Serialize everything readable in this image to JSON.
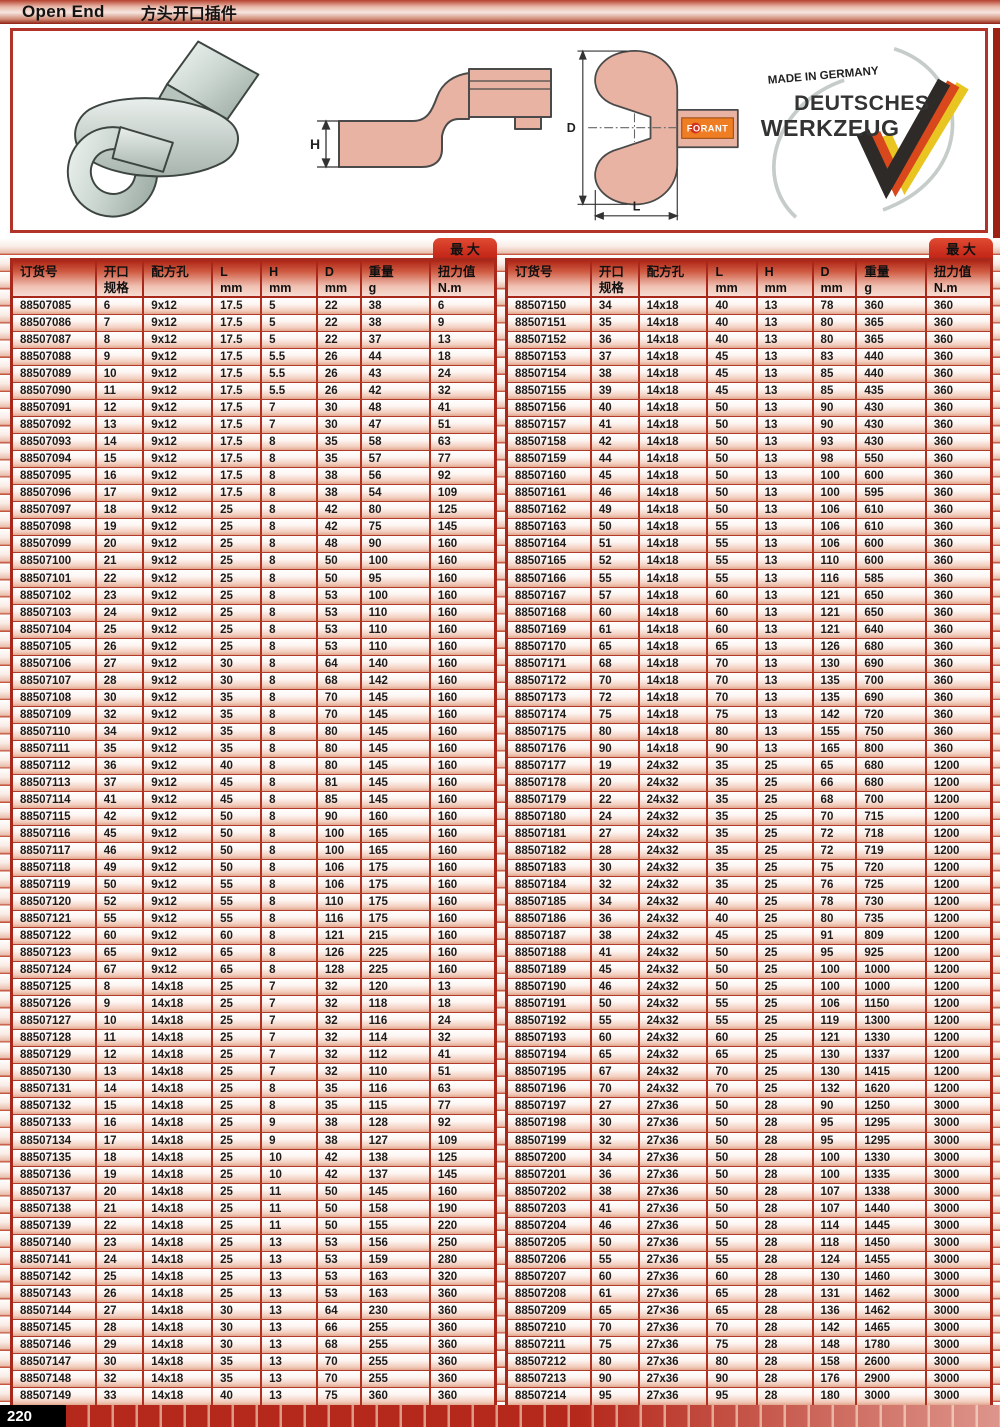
{
  "page": {
    "title_en": "Open End",
    "title_zh": "方头开口插件",
    "page_number": "220"
  },
  "figures": {
    "side_h_label": "H",
    "front_d_label": "D",
    "front_l_label": "L",
    "brand": "FORANT",
    "logo_line1": "MADE IN GERMANY",
    "logo_line2": "DEUTSCHES",
    "logo_line3": "WERKZEUG"
  },
  "table": {
    "max_tab": "最 大",
    "headers": [
      {
        "l1": "订货号",
        "l2": ""
      },
      {
        "l1": "开口",
        "l2": "规格"
      },
      {
        "l1": "配方孔",
        "l2": ""
      },
      {
        "l1": "L",
        "l2": "mm"
      },
      {
        "l1": "H",
        "l2": "mm"
      },
      {
        "l1": "D",
        "l2": "mm"
      },
      {
        "l1": "重量",
        "l2": "g"
      },
      {
        "l1": "扭力值",
        "l2": "N.m"
      }
    ],
    "left_rows": [
      [
        "88507085",
        "6",
        "9x12",
        "17.5",
        "5",
        "22",
        "38",
        "6"
      ],
      [
        "88507086",
        "7",
        "9x12",
        "17.5",
        "5",
        "22",
        "38",
        "9"
      ],
      [
        "88507087",
        "8",
        "9x12",
        "17.5",
        "5",
        "22",
        "37",
        "13"
      ],
      [
        "88507088",
        "9",
        "9x12",
        "17.5",
        "5.5",
        "26",
        "44",
        "18"
      ],
      [
        "88507089",
        "10",
        "9x12",
        "17.5",
        "5.5",
        "26",
        "43",
        "24"
      ],
      [
        "88507090",
        "11",
        "9x12",
        "17.5",
        "5.5",
        "26",
        "42",
        "32"
      ],
      [
        "88507091",
        "12",
        "9x12",
        "17.5",
        "7",
        "30",
        "48",
        "41"
      ],
      [
        "88507092",
        "13",
        "9x12",
        "17.5",
        "7",
        "30",
        "47",
        "51"
      ],
      [
        "88507093",
        "14",
        "9x12",
        "17.5",
        "8",
        "35",
        "58",
        "63"
      ],
      [
        "88507094",
        "15",
        "9x12",
        "17.5",
        "8",
        "35",
        "57",
        "77"
      ],
      [
        "88507095",
        "16",
        "9x12",
        "17.5",
        "8",
        "38",
        "56",
        "92"
      ],
      [
        "88507096",
        "17",
        "9x12",
        "17.5",
        "8",
        "38",
        "54",
        "109"
      ],
      [
        "88507097",
        "18",
        "9x12",
        "25",
        "8",
        "42",
        "80",
        "125"
      ],
      [
        "88507098",
        "19",
        "9x12",
        "25",
        "8",
        "42",
        "75",
        "145"
      ],
      [
        "88507099",
        "20",
        "9x12",
        "25",
        "8",
        "48",
        "90",
        "160"
      ],
      [
        "88507100",
        "21",
        "9x12",
        "25",
        "8",
        "50",
        "100",
        "160"
      ],
      [
        "88507101",
        "22",
        "9x12",
        "25",
        "8",
        "50",
        "95",
        "160"
      ],
      [
        "88507102",
        "23",
        "9x12",
        "25",
        "8",
        "53",
        "100",
        "160"
      ],
      [
        "88507103",
        "24",
        "9x12",
        "25",
        "8",
        "53",
        "110",
        "160"
      ],
      [
        "88507104",
        "25",
        "9x12",
        "25",
        "8",
        "53",
        "110",
        "160"
      ],
      [
        "88507105",
        "26",
        "9x12",
        "25",
        "8",
        "53",
        "110",
        "160"
      ],
      [
        "88507106",
        "27",
        "9x12",
        "30",
        "8",
        "64",
        "140",
        "160"
      ],
      [
        "88507107",
        "28",
        "9x12",
        "30",
        "8",
        "68",
        "142",
        "160"
      ],
      [
        "88507108",
        "30",
        "9x12",
        "35",
        "8",
        "70",
        "145",
        "160"
      ],
      [
        "88507109",
        "32",
        "9x12",
        "35",
        "8",
        "70",
        "145",
        "160"
      ],
      [
        "88507110",
        "34",
        "9x12",
        "35",
        "8",
        "80",
        "145",
        "160"
      ],
      [
        "88507111",
        "35",
        "9x12",
        "35",
        "8",
        "80",
        "145",
        "160"
      ],
      [
        "88507112",
        "36",
        "9x12",
        "40",
        "8",
        "80",
        "145",
        "160"
      ],
      [
        "88507113",
        "37",
        "9x12",
        "45",
        "8",
        "81",
        "145",
        "160"
      ],
      [
        "88507114",
        "41",
        "9x12",
        "45",
        "8",
        "85",
        "145",
        "160"
      ],
      [
        "88507115",
        "42",
        "9x12",
        "50",
        "8",
        "90",
        "160",
        "160"
      ],
      [
        "88507116",
        "45",
        "9x12",
        "50",
        "8",
        "100",
        "165",
        "160"
      ],
      [
        "88507117",
        "46",
        "9x12",
        "50",
        "8",
        "100",
        "165",
        "160"
      ],
      [
        "88507118",
        "49",
        "9x12",
        "50",
        "8",
        "106",
        "175",
        "160"
      ],
      [
        "88507119",
        "50",
        "9x12",
        "55",
        "8",
        "106",
        "175",
        "160"
      ],
      [
        "88507120",
        "52",
        "9x12",
        "55",
        "8",
        "110",
        "175",
        "160"
      ],
      [
        "88507121",
        "55",
        "9x12",
        "55",
        "8",
        "116",
        "175",
        "160"
      ],
      [
        "88507122",
        "60",
        "9x12",
        "60",
        "8",
        "121",
        "215",
        "160"
      ],
      [
        "88507123",
        "65",
        "9x12",
        "65",
        "8",
        "126",
        "225",
        "160"
      ],
      [
        "88507124",
        "67",
        "9x12",
        "65",
        "8",
        "128",
        "225",
        "160"
      ],
      [
        "88507125",
        "8",
        "14x18",
        "25",
        "7",
        "32",
        "120",
        "13"
      ],
      [
        "88507126",
        "9",
        "14x18",
        "25",
        "7",
        "32",
        "118",
        "18"
      ],
      [
        "88507127",
        "10",
        "14x18",
        "25",
        "7",
        "32",
        "116",
        "24"
      ],
      [
        "88507128",
        "11",
        "14x18",
        "25",
        "7",
        "32",
        "114",
        "32"
      ],
      [
        "88507129",
        "12",
        "14x18",
        "25",
        "7",
        "32",
        "112",
        "41"
      ],
      [
        "88507130",
        "13",
        "14x18",
        "25",
        "7",
        "32",
        "110",
        "51"
      ],
      [
        "88507131",
        "14",
        "14x18",
        "25",
        "8",
        "35",
        "116",
        "63"
      ],
      [
        "88507132",
        "15",
        "14x18",
        "25",
        "8",
        "35",
        "115",
        "77"
      ],
      [
        "88507133",
        "16",
        "14x18",
        "25",
        "9",
        "38",
        "128",
        "92"
      ],
      [
        "88507134",
        "17",
        "14x18",
        "25",
        "9",
        "38",
        "127",
        "109"
      ],
      [
        "88507135",
        "18",
        "14x18",
        "25",
        "10",
        "42",
        "138",
        "125"
      ],
      [
        "88507136",
        "19",
        "14x18",
        "25",
        "10",
        "42",
        "137",
        "145"
      ],
      [
        "88507137",
        "20",
        "14x18",
        "25",
        "11",
        "50",
        "145",
        "160"
      ],
      [
        "88507138",
        "21",
        "14x18",
        "25",
        "11",
        "50",
        "158",
        "190"
      ],
      [
        "88507139",
        "22",
        "14x18",
        "25",
        "11",
        "50",
        "155",
        "220"
      ],
      [
        "88507140",
        "23",
        "14x18",
        "25",
        "13",
        "53",
        "156",
        "250"
      ],
      [
        "88507141",
        "24",
        "14x18",
        "25",
        "13",
        "53",
        "159",
        "280"
      ],
      [
        "88507142",
        "25",
        "14x18",
        "25",
        "13",
        "53",
        "163",
        "320"
      ],
      [
        "88507143",
        "26",
        "14x18",
        "25",
        "13",
        "53",
        "163",
        "360"
      ],
      [
        "88507144",
        "27",
        "14x18",
        "30",
        "13",
        "64",
        "230",
        "360"
      ],
      [
        "88507145",
        "28",
        "14x18",
        "30",
        "13",
        "66",
        "255",
        "360"
      ],
      [
        "88507146",
        "29",
        "14x18",
        "30",
        "13",
        "68",
        "255",
        "360"
      ],
      [
        "88507147",
        "30",
        "14x18",
        "35",
        "13",
        "70",
        "255",
        "360"
      ],
      [
        "88507148",
        "32",
        "14x18",
        "35",
        "13",
        "70",
        "255",
        "360"
      ],
      [
        "88507149",
        "33",
        "14x18",
        "40",
        "13",
        "75",
        "360",
        "360"
      ]
    ],
    "right_rows": [
      [
        "88507150",
        "34",
        "14x18",
        "40",
        "13",
        "78",
        "360",
        "360"
      ],
      [
        "88507151",
        "35",
        "14x18",
        "40",
        "13",
        "80",
        "365",
        "360"
      ],
      [
        "88507152",
        "36",
        "14x18",
        "40",
        "13",
        "80",
        "365",
        "360"
      ],
      [
        "88507153",
        "37",
        "14x18",
        "45",
        "13",
        "83",
        "440",
        "360"
      ],
      [
        "88507154",
        "38",
        "14x18",
        "45",
        "13",
        "85",
        "440",
        "360"
      ],
      [
        "88507155",
        "39",
        "14x18",
        "45",
        "13",
        "85",
        "435",
        "360"
      ],
      [
        "88507156",
        "40",
        "14x18",
        "50",
        "13",
        "90",
        "430",
        "360"
      ],
      [
        "88507157",
        "41",
        "14x18",
        "50",
        "13",
        "90",
        "430",
        "360"
      ],
      [
        "88507158",
        "42",
        "14x18",
        "50",
        "13",
        "93",
        "430",
        "360"
      ],
      [
        "88507159",
        "44",
        "14x18",
        "50",
        "13",
        "98",
        "550",
        "360"
      ],
      [
        "88507160",
        "45",
        "14x18",
        "50",
        "13",
        "100",
        "600",
        "360"
      ],
      [
        "88507161",
        "46",
        "14x18",
        "50",
        "13",
        "100",
        "595",
        "360"
      ],
      [
        "88507162",
        "49",
        "14x18",
        "50",
        "13",
        "106",
        "610",
        "360"
      ],
      [
        "88507163",
        "50",
        "14x18",
        "55",
        "13",
        "106",
        "610",
        "360"
      ],
      [
        "88507164",
        "51",
        "14x18",
        "55",
        "13",
        "106",
        "600",
        "360"
      ],
      [
        "88507165",
        "52",
        "14x18",
        "55",
        "13",
        "110",
        "600",
        "360"
      ],
      [
        "88507166",
        "55",
        "14x18",
        "55",
        "13",
        "116",
        "585",
        "360"
      ],
      [
        "88507167",
        "57",
        "14x18",
        "60",
        "13",
        "121",
        "650",
        "360"
      ],
      [
        "88507168",
        "60",
        "14x18",
        "60",
        "13",
        "121",
        "650",
        "360"
      ],
      [
        "88507169",
        "61",
        "14x18",
        "60",
        "13",
        "121",
        "640",
        "360"
      ],
      [
        "88507170",
        "65",
        "14x18",
        "65",
        "13",
        "126",
        "680",
        "360"
      ],
      [
        "88507171",
        "68",
        "14x18",
        "70",
        "13",
        "130",
        "690",
        "360"
      ],
      [
        "88507172",
        "70",
        "14x18",
        "70",
        "13",
        "135",
        "700",
        "360"
      ],
      [
        "88507173",
        "72",
        "14x18",
        "70",
        "13",
        "135",
        "690",
        "360"
      ],
      [
        "88507174",
        "75",
        "14x18",
        "75",
        "13",
        "142",
        "720",
        "360"
      ],
      [
        "88507175",
        "80",
        "14x18",
        "80",
        "13",
        "155",
        "750",
        "360"
      ],
      [
        "88507176",
        "90",
        "14x18",
        "90",
        "13",
        "165",
        "800",
        "360"
      ],
      [
        "88507177",
        "19",
        "24x32",
        "35",
        "25",
        "65",
        "680",
        "1200"
      ],
      [
        "88507178",
        "20",
        "24x32",
        "35",
        "25",
        "66",
        "680",
        "1200"
      ],
      [
        "88507179",
        "22",
        "24x32",
        "35",
        "25",
        "68",
        "700",
        "1200"
      ],
      [
        "88507180",
        "24",
        "24x32",
        "35",
        "25",
        "70",
        "715",
        "1200"
      ],
      [
        "88507181",
        "27",
        "24x32",
        "35",
        "25",
        "72",
        "718",
        "1200"
      ],
      [
        "88507182",
        "28",
        "24x32",
        "35",
        "25",
        "72",
        "719",
        "1200"
      ],
      [
        "88507183",
        "30",
        "24x32",
        "35",
        "25",
        "75",
        "720",
        "1200"
      ],
      [
        "88507184",
        "32",
        "24x32",
        "35",
        "25",
        "76",
        "725",
        "1200"
      ],
      [
        "88507185",
        "34",
        "24x32",
        "40",
        "25",
        "78",
        "730",
        "1200"
      ],
      [
        "88507186",
        "36",
        "24x32",
        "40",
        "25",
        "80",
        "735",
        "1200"
      ],
      [
        "88507187",
        "38",
        "24x32",
        "45",
        "25",
        "91",
        "809",
        "1200"
      ],
      [
        "88507188",
        "41",
        "24x32",
        "50",
        "25",
        "95",
        "925",
        "1200"
      ],
      [
        "88507189",
        "45",
        "24x32",
        "50",
        "25",
        "100",
        "1000",
        "1200"
      ],
      [
        "88507190",
        "46",
        "24x32",
        "50",
        "25",
        "100",
        "1000",
        "1200"
      ],
      [
        "88507191",
        "50",
        "24x32",
        "55",
        "25",
        "106",
        "1150",
        "1200"
      ],
      [
        "88507192",
        "55",
        "24x32",
        "55",
        "25",
        "119",
        "1300",
        "1200"
      ],
      [
        "88507193",
        "60",
        "24x32",
        "60",
        "25",
        "121",
        "1330",
        "1200"
      ],
      [
        "88507194",
        "65",
        "24x32",
        "65",
        "25",
        "130",
        "1337",
        "1200"
      ],
      [
        "88507195",
        "67",
        "24x32",
        "70",
        "25",
        "130",
        "1415",
        "1200"
      ],
      [
        "88507196",
        "70",
        "24x32",
        "70",
        "25",
        "132",
        "1620",
        "1200"
      ],
      [
        "88507197",
        "27",
        "27x36",
        "50",
        "28",
        "90",
        "1250",
        "3000"
      ],
      [
        "88507198",
        "30",
        "27x36",
        "50",
        "28",
        "95",
        "1295",
        "3000"
      ],
      [
        "88507199",
        "32",
        "27x36",
        "50",
        "28",
        "95",
        "1295",
        "3000"
      ],
      [
        "88507200",
        "34",
        "27x36",
        "50",
        "28",
        "100",
        "1330",
        "3000"
      ],
      [
        "88507201",
        "36",
        "27x36",
        "50",
        "28",
        "100",
        "1335",
        "3000"
      ],
      [
        "88507202",
        "38",
        "27x36",
        "50",
        "28",
        "107",
        "1338",
        "3000"
      ],
      [
        "88507203",
        "41",
        "27x36",
        "50",
        "28",
        "107",
        "1440",
        "3000"
      ],
      [
        "88507204",
        "46",
        "27x36",
        "50",
        "28",
        "114",
        "1445",
        "3000"
      ],
      [
        "88507205",
        "50",
        "27x36",
        "55",
        "28",
        "118",
        "1450",
        "3000"
      ],
      [
        "88507206",
        "55",
        "27x36",
        "55",
        "28",
        "124",
        "1455",
        "3000"
      ],
      [
        "88507207",
        "60",
        "27x36",
        "60",
        "28",
        "130",
        "1460",
        "3000"
      ],
      [
        "88507208",
        "61",
        "27x36",
        "65",
        "28",
        "131",
        "1462",
        "3000"
      ],
      [
        "88507209",
        "65",
        "27×36",
        "65",
        "28",
        "136",
        "1462",
        "3000"
      ],
      [
        "88507210",
        "70",
        "27x36",
        "70",
        "28",
        "142",
        "1465",
        "3000"
      ],
      [
        "88507211",
        "75",
        "27x36",
        "75",
        "28",
        "148",
        "1780",
        "3000"
      ],
      [
        "88507212",
        "80",
        "27x36",
        "80",
        "28",
        "158",
        "2600",
        "3000"
      ],
      [
        "88507213",
        "90",
        "27x36",
        "90",
        "28",
        "176",
        "2900",
        "3000"
      ],
      [
        "88507214",
        "95",
        "27x36",
        "95",
        "28",
        "180",
        "3000",
        "3000"
      ]
    ]
  },
  "colors": {
    "accent_red": "#b23327",
    "tab_red": "#c02315",
    "row_tint": "#e3a78f",
    "drawing_salmon": "#e9b3a3",
    "brand_orange": "#ef7d23"
  }
}
